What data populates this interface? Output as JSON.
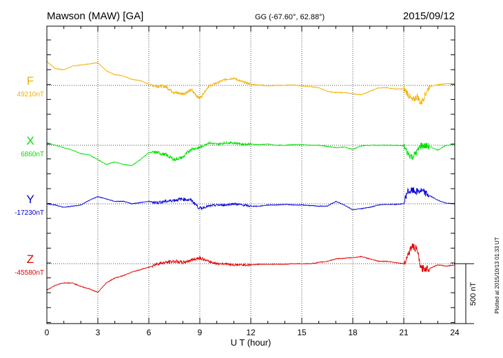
{
  "header": {
    "station": "Mawson (MAW)  [GA]",
    "coords": "GG (-67.60°,  62.88°)",
    "date": "2015/09/12"
  },
  "plotted_note": "Plotted at 2015/10/13 01:33 UT",
  "scale_bar_label": "500 nT",
  "colors": {
    "F": "#f5b000",
    "X": "#00e000",
    "Y": "#0000dd",
    "Z": "#e00000",
    "axis": "#000000"
  },
  "chart_data": {
    "type": "line",
    "xlabel": "U T (hour)",
    "xlim": [
      0,
      24
    ],
    "xticks": [
      "0",
      "3",
      "6",
      "9",
      "12",
      "15",
      "18",
      "21",
      "24"
    ],
    "scale_nT": 500,
    "series": [
      {
        "name": "F",
        "baseline_label": "49210nT",
        "baseline": 49210,
        "x": [
          0,
          0.5,
          1,
          1.5,
          2,
          2.5,
          3,
          3.5,
          4,
          4.5,
          5,
          5.5,
          6,
          6.5,
          7,
          7.5,
          8,
          8.5,
          9,
          9.5,
          10,
          10.5,
          11,
          11.5,
          12,
          12.5,
          13,
          13.5,
          14,
          14.5,
          15,
          15.5,
          16,
          16.5,
          17,
          17.5,
          18,
          18.5,
          19,
          19.5,
          20,
          20.5,
          21,
          21.2,
          21.5,
          21.8,
          22,
          22.5,
          23,
          23.5,
          24
        ],
        "values": [
          49410,
          49350,
          49340,
          49370,
          49380,
          49390,
          49400,
          49330,
          49300,
          49290,
          49260,
          49250,
          49220,
          49205,
          49200,
          49150,
          49140,
          49170,
          49100,
          49200,
          49230,
          49260,
          49270,
          49240,
          49220,
          49215,
          49205,
          49210,
          49210,
          49215,
          49205,
          49200,
          49190,
          49160,
          49150,
          49150,
          49140,
          49130,
          49160,
          49190,
          49190,
          49180,
          49180,
          49150,
          49080,
          49120,
          49060,
          49200,
          49215,
          49225,
          49225
        ]
      },
      {
        "name": "X",
        "baseline_label": "6860nT",
        "baseline": 6860,
        "x": [
          0,
          0.5,
          1,
          1.5,
          2,
          2.5,
          3,
          3.5,
          4,
          4.5,
          5,
          5.5,
          6,
          6.5,
          7,
          7.5,
          8,
          8.5,
          9,
          9.5,
          10,
          10.5,
          11,
          11.5,
          12,
          12.5,
          13,
          13.5,
          14,
          14.5,
          15,
          15.5,
          16,
          16.5,
          17,
          17.5,
          18,
          18.5,
          19,
          19.5,
          20,
          20.5,
          21,
          21.2,
          21.5,
          21.8,
          22,
          22.5,
          23,
          23.5,
          24
        ],
        "values": [
          6880,
          6860,
          6840,
          6820,
          6790,
          6780,
          6740,
          6700,
          6720,
          6700,
          6690,
          6740,
          6800,
          6800,
          6780,
          6740,
          6760,
          6830,
          6840,
          6880,
          6870,
          6880,
          6880,
          6870,
          6870,
          6865,
          6870,
          6860,
          6860,
          6865,
          6865,
          6860,
          6860,
          6850,
          6840,
          6845,
          6825,
          6855,
          6860,
          6860,
          6860,
          6860,
          6855,
          6800,
          6760,
          6810,
          6860,
          6850,
          6820,
          6860,
          6865
        ]
      },
      {
        "name": "Y",
        "baseline_label": "-17230nT",
        "baseline": -17230,
        "x": [
          0,
          0.5,
          1,
          1.5,
          2,
          2.5,
          3,
          3.5,
          4,
          4.5,
          5,
          5.5,
          6,
          6.5,
          7,
          7.5,
          8,
          8.5,
          9,
          9.5,
          10,
          10.5,
          11,
          11.5,
          12,
          12.5,
          13,
          13.5,
          14,
          14.5,
          15,
          15.5,
          16,
          16.5,
          17,
          17.5,
          18,
          18.5,
          19,
          19.5,
          20,
          20.5,
          21,
          21.2,
          21.5,
          21.8,
          22,
          22.5,
          23,
          23.5,
          24
        ],
        "values": [
          -17230,
          -17240,
          -17260,
          -17250,
          -17240,
          -17200,
          -17170,
          -17190,
          -17210,
          -17210,
          -17230,
          -17220,
          -17210,
          -17220,
          -17210,
          -17200,
          -17190,
          -17200,
          -17270,
          -17250,
          -17240,
          -17240,
          -17230,
          -17240,
          -17250,
          -17250,
          -17240,
          -17240,
          -17235,
          -17240,
          -17240,
          -17245,
          -17250,
          -17250,
          -17210,
          -17240,
          -17280,
          -17270,
          -17260,
          -17240,
          -17235,
          -17235,
          -17230,
          -17130,
          -17120,
          -17130,
          -17120,
          -17160,
          -17200,
          -17225,
          -17230
        ]
      },
      {
        "name": "Z",
        "baseline_label": "-45580nT",
        "baseline": -45580,
        "x": [
          0,
          0.5,
          1,
          1.5,
          2,
          2.5,
          3,
          3.5,
          4,
          4.5,
          5,
          5.5,
          6,
          6.5,
          7,
          7.5,
          8,
          8.5,
          9,
          9.5,
          10,
          10.5,
          11,
          11.5,
          12,
          12.5,
          13,
          13.5,
          14,
          14.5,
          15,
          15.5,
          16,
          16.5,
          17,
          17.5,
          18,
          18.5,
          19,
          19.5,
          20,
          20.5,
          21,
          21.2,
          21.5,
          21.8,
          22,
          22.5,
          23,
          23.5,
          24
        ],
        "values": [
          -45800,
          -45760,
          -45740,
          -45740,
          -45770,
          -45790,
          -45820,
          -45740,
          -45700,
          -45680,
          -45650,
          -45630,
          -45610,
          -45580,
          -45570,
          -45560,
          -45570,
          -45550,
          -45530,
          -45560,
          -45580,
          -45580,
          -45590,
          -45590,
          -45590,
          -45585,
          -45585,
          -45585,
          -45585,
          -45580,
          -45580,
          -45580,
          -45570,
          -45560,
          -45540,
          -45535,
          -45530,
          -45520,
          -45540,
          -45560,
          -45560,
          -45570,
          -45580,
          -45520,
          -45430,
          -45470,
          -45620,
          -45620,
          -45590,
          -45600,
          -45590
        ]
      }
    ]
  }
}
